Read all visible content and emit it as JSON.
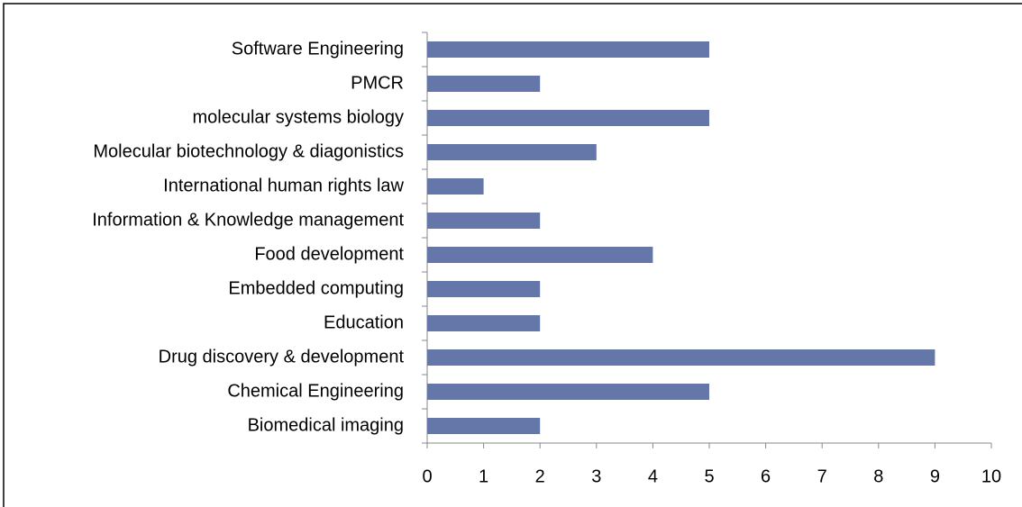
{
  "chart_data": {
    "type": "barh",
    "categories": [
      "Biomedical imaging",
      "Chemical Engineering",
      "Drug discovery & development",
      "Education",
      "Embedded computing",
      "Food development",
      "Information & Knowledge management",
      "International human rights law",
      "Molecular biotechnology & diagonistics",
      "molecular systems biology",
      "PMCR",
      "Software Engineering"
    ],
    "values": [
      2,
      5,
      9,
      2,
      2,
      4,
      2,
      1,
      3,
      5,
      2,
      5
    ],
    "color": "#6477a8",
    "xlim": [
      0,
      10
    ],
    "xticks": [
      0,
      1,
      2,
      3,
      4,
      5,
      6,
      7,
      8,
      9,
      10
    ],
    "grid": false
  }
}
